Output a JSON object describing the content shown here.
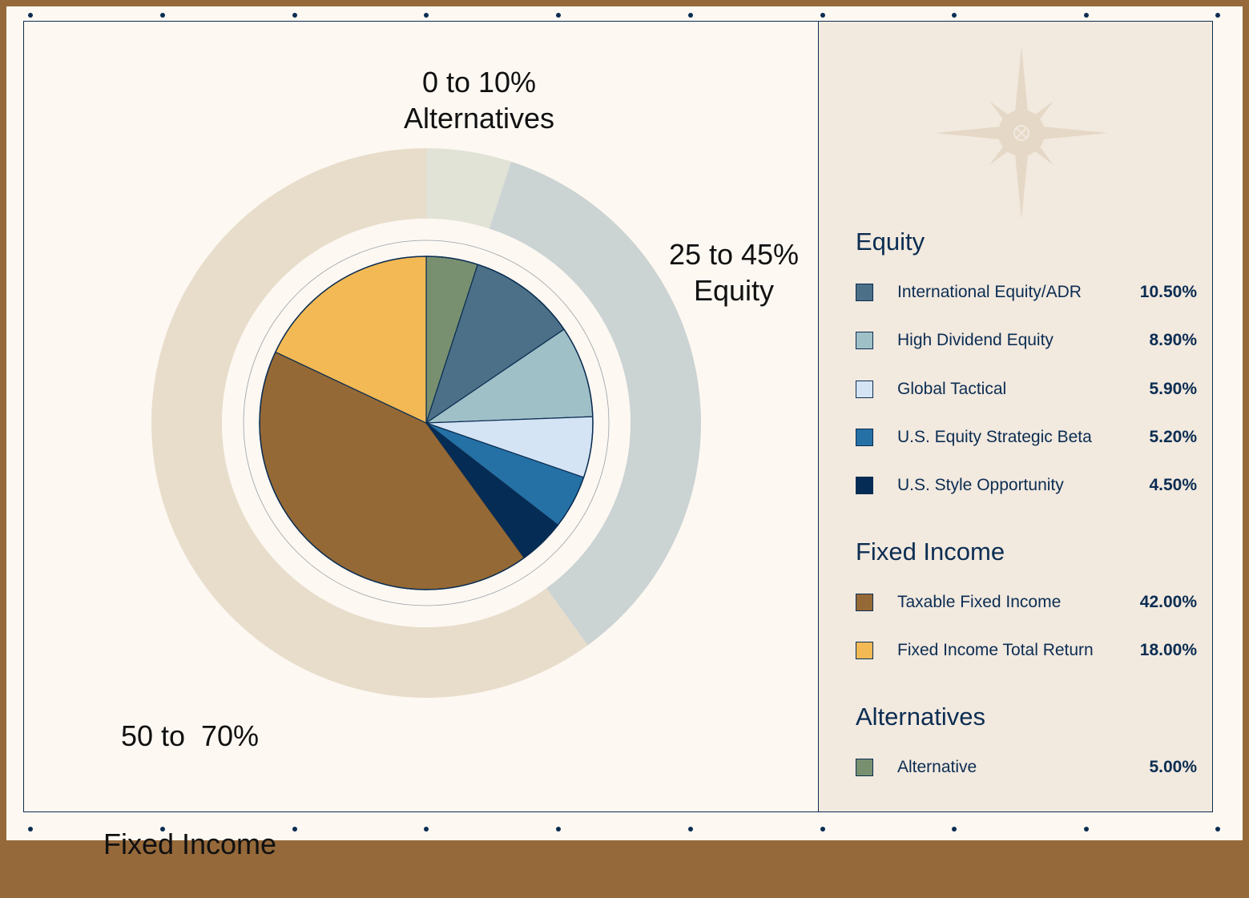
{
  "chart_data": {
    "type": "pie",
    "inner_pie": {
      "slices": [
        {
          "name": "Alternative",
          "value": 5.0,
          "color": "#789070"
        },
        {
          "name": "International Equity/ADR",
          "value": 10.5,
          "color": "#4b7087"
        },
        {
          "name": "High Dividend Equity",
          "value": 8.9,
          "color": "#9fc0c7"
        },
        {
          "name": "Global Tactical",
          "value": 5.9,
          "color": "#d4e4f5"
        },
        {
          "name": "U.S. Equity Strategic Beta",
          "value": 5.2,
          "color": "#2571a5"
        },
        {
          "name": "U.S. Style Opportunity",
          "value": 4.5,
          "color": "#042c55"
        },
        {
          "name": "Taxable Fixed Income",
          "value": 42.0,
          "color": "#956935"
        },
        {
          "name": "Fixed Income Total Return",
          "value": 18.0,
          "color": "#f2b955"
        }
      ]
    },
    "outer_ring": [
      {
        "range": "0 to 10%",
        "name": "Alternatives",
        "value": 5,
        "color": "#e2e3d7"
      },
      {
        "range": "25 to 45%",
        "name": "Equity",
        "value": 35,
        "color": "#cbd3d3"
      },
      {
        "range": "50 to  70%",
        "name": "Fixed Income",
        "value": 60,
        "color": "#e8ddcb"
      }
    ],
    "legend": {
      "placement": "right",
      "groups": [
        {
          "title": "Equity",
          "items": [
            {
              "name": "International Equity/ADR",
              "value": "10.50%",
              "color": "#4b7087"
            },
            {
              "name": "High Dividend Equity",
              "value": "8.90%",
              "color": "#9fc0c7"
            },
            {
              "name": "Global Tactical",
              "value": "5.90%",
              "color": "#d4e4f5"
            },
            {
              "name": "U.S. Equity Strategic Beta",
              "value": "5.20%",
              "color": "#2571a5"
            },
            {
              "name": "U.S. Style Opportunity",
              "value": "4.50%",
              "color": "#042c55"
            }
          ]
        },
        {
          "title": "Fixed Income",
          "items": [
            {
              "name": "Taxable Fixed Income",
              "value": "42.00%",
              "color": "#956935"
            },
            {
              "name": "Fixed Income Total Return",
              "value": "18.00%",
              "color": "#f2b955"
            }
          ]
        },
        {
          "title": "Alternatives",
          "items": [
            {
              "name": "Alternative",
              "value": "5.00%",
              "color": "#789070"
            }
          ]
        }
      ]
    }
  },
  "decor": {
    "icon": "compass-rose-icon",
    "border_color": "#96693a",
    "accent": "#0b2d52"
  }
}
